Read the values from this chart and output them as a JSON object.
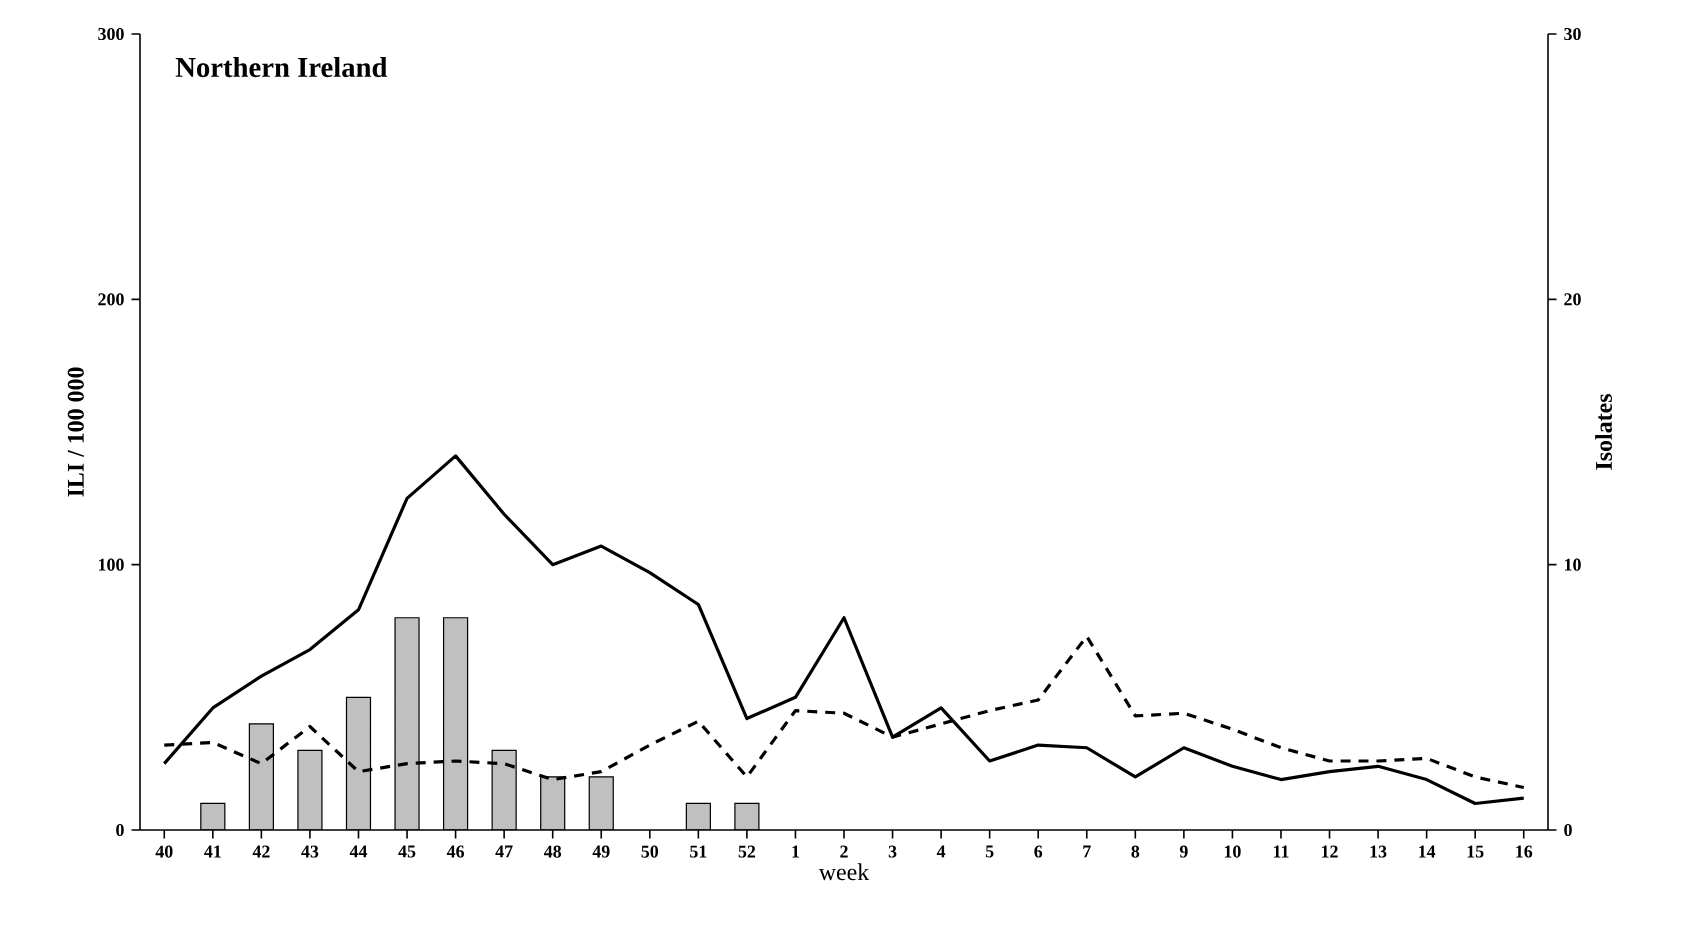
{
  "chart_data": {
    "type": "bar",
    "title": "Northern Ireland",
    "xlabel": "week",
    "ylabel": "ILI / 100 000",
    "y2label": "Isolates",
    "categories": [
      "40",
      "41",
      "42",
      "43",
      "44",
      "45",
      "46",
      "47",
      "48",
      "49",
      "50",
      "51",
      "52",
      "1",
      "2",
      "3",
      "4",
      "5",
      "6",
      "7",
      "8",
      "9",
      "10",
      "11",
      "12",
      "13",
      "14",
      "15",
      "16"
    ],
    "ylim": [
      0,
      300
    ],
    "yticks": [
      0,
      100,
      200,
      300
    ],
    "y2lim": [
      0,
      30
    ],
    "y2ticks": [
      0,
      10,
      20,
      30
    ],
    "series": [
      {
        "axis": "y2",
        "color": "#c0c0c0",
        "values": [
          null,
          1,
          4,
          3,
          5,
          8,
          8,
          3,
          2,
          2,
          null,
          1,
          1,
          null,
          null,
          null,
          null,
          null,
          null,
          null,
          null,
          null,
          null,
          null,
          null,
          null,
          null,
          null,
          null
        ]
      },
      {
        "type": "line",
        "color": "#000000",
        "line_style": "solid",
        "values": [
          25,
          46,
          58,
          68,
          83,
          125,
          141,
          119,
          100,
          107,
          97,
          85,
          42,
          50,
          80,
          35,
          46,
          26,
          32,
          31,
          20,
          31,
          24,
          19,
          22,
          24,
          19,
          10,
          12
        ]
      },
      {
        "type": "line",
        "color": "#000000",
        "line_style": "dashed",
        "values": [
          32,
          33,
          25,
          39,
          22,
          25,
          26,
          25,
          19,
          22,
          32,
          41,
          20,
          45,
          44,
          35,
          40,
          45,
          49,
          73,
          43,
          44,
          38,
          31,
          26,
          26,
          27,
          20,
          16
        ]
      }
    ]
  }
}
